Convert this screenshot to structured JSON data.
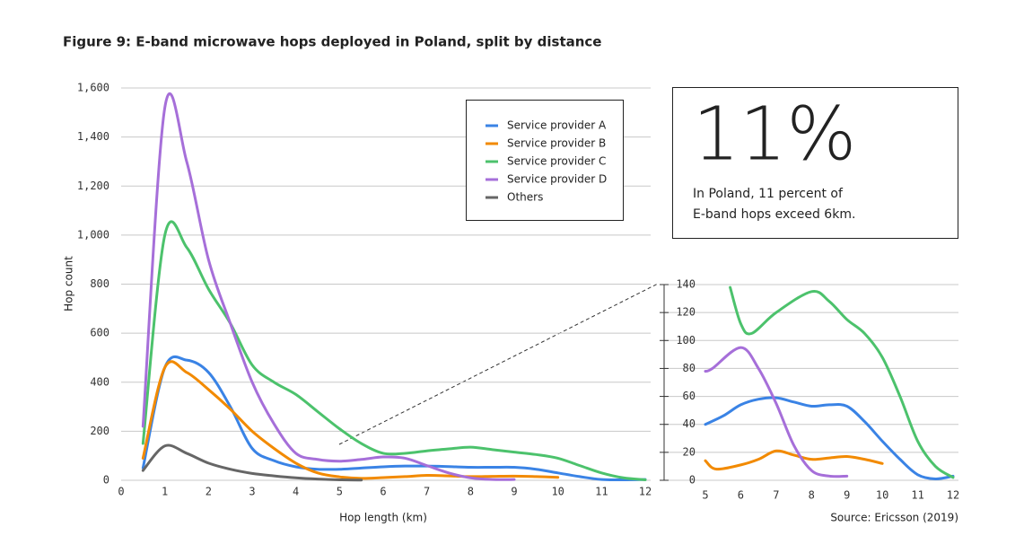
{
  "chart_data": [
    {
      "type": "line",
      "title": "Figure 9: E-band microwave hops deployed in Poland, split by distance",
      "xlabel": "Hop length (km)",
      "ylabel": "Hop count",
      "callout": {
        "value": "11%",
        "text": [
          "In Poland, 11 percent of",
          "E-band hops exceed 6km."
        ]
      },
      "x": [
        0.5,
        1,
        1.5,
        2,
        2.5,
        3,
        3.5,
        4,
        4.5,
        5,
        5.5,
        6,
        6.5,
        7,
        7.5,
        8,
        8.5,
        9,
        9.5,
        10,
        10.5,
        11,
        11.5,
        12
      ],
      "xlim": [
        0,
        12
      ],
      "xticks": [
        0,
        1,
        2,
        3,
        4,
        5,
        6,
        7,
        8,
        9,
        10,
        11,
        12
      ],
      "ylim": [
        0,
        1600
      ],
      "yticks": [
        0,
        200,
        400,
        600,
        800,
        {
          "value": 1000,
          "label": "1,000"
        },
        {
          "value": 1200,
          "label": "1,200"
        },
        {
          "value": 1400,
          "label": "1,400"
        },
        {
          "value": 1600,
          "label": "1,600"
        }
      ],
      "grid": true,
      "series": [
        {
          "name": "Service provider A",
          "color": "#3a83e5",
          "values": [
            50,
            460,
            490,
            440,
            300,
            130,
            80,
            55,
            45,
            45,
            50,
            55,
            58,
            58,
            56,
            53,
            53,
            53,
            45,
            30,
            15,
            3,
            2,
            3
          ]
        },
        {
          "name": "Service provider B",
          "color": "#f28a00",
          "values": [
            90,
            460,
            440,
            370,
            290,
            200,
            130,
            70,
            30,
            14,
            8,
            11,
            15,
            20,
            18,
            15,
            16,
            17,
            15,
            12,
            null,
            null,
            null,
            null
          ]
        },
        {
          "name": "Service provider C",
          "color": "#4cc26c",
          "values": [
            150,
            1000,
            950,
            780,
            640,
            470,
            400,
            350,
            280,
            210,
            150,
            110,
            110,
            120,
            128,
            135,
            125,
            115,
            105,
            90,
            60,
            30,
            10,
            2
          ]
        },
        {
          "name": "Service provider D",
          "color": "#a66fd9",
          "values": [
            220,
            1520,
            1300,
            900,
            640,
            400,
            230,
            110,
            85,
            78,
            85,
            95,
            90,
            60,
            30,
            10,
            3,
            3,
            null,
            null,
            null,
            null,
            null,
            null
          ]
        },
        {
          "name": "Others",
          "color": "#666666",
          "values": [
            40,
            140,
            110,
            70,
            45,
            28,
            18,
            10,
            5,
            2,
            1,
            null,
            null,
            null,
            null,
            null,
            null,
            null,
            null,
            null,
            null,
            null,
            null,
            null
          ]
        }
      ]
    },
    {
      "type": "line",
      "source": "Source: Ericsson (2019)",
      "xlim": [
        5,
        12
      ],
      "xticks": [
        5,
        6,
        7,
        8,
        9,
        10,
        11,
        12
      ],
      "ylim": [
        0,
        140
      ],
      "yticks": [
        0,
        20,
        40,
        60,
        80,
        100,
        120,
        140
      ],
      "grid": true,
      "series": [
        {
          "color": "#3a83e5",
          "x": [
            5,
            5.5,
            6,
            6.5,
            7,
            7.5,
            8,
            8.5,
            9,
            9.5,
            10,
            10.5,
            11,
            11.5,
            12
          ],
          "values": [
            40,
            46,
            54,
            58,
            59,
            56,
            53,
            54,
            53,
            42,
            28,
            15,
            4,
            1,
            3
          ]
        },
        {
          "color": "#f28a00",
          "x": [
            5,
            5.3,
            6,
            6.5,
            7,
            7.5,
            8,
            8.5,
            9,
            9.5,
            10
          ],
          "values": [
            14,
            8,
            11,
            15,
            21,
            18,
            15,
            16,
            17,
            15,
            12
          ]
        },
        {
          "color": "#4cc26c",
          "x": [
            5.7,
            6,
            6.3,
            7,
            8,
            8.5,
            9,
            9.5,
            10,
            10.5,
            11,
            11.5,
            12
          ],
          "values": [
            138,
            112,
            105,
            120,
            135,
            128,
            115,
            105,
            88,
            60,
            28,
            10,
            2
          ]
        },
        {
          "color": "#a66fd9",
          "x": [
            5,
            5.2,
            6,
            6.5,
            7,
            7.5,
            8,
            8.5,
            9
          ],
          "values": [
            78,
            80,
            95,
            80,
            55,
            25,
            7,
            3,
            3
          ]
        }
      ]
    }
  ]
}
